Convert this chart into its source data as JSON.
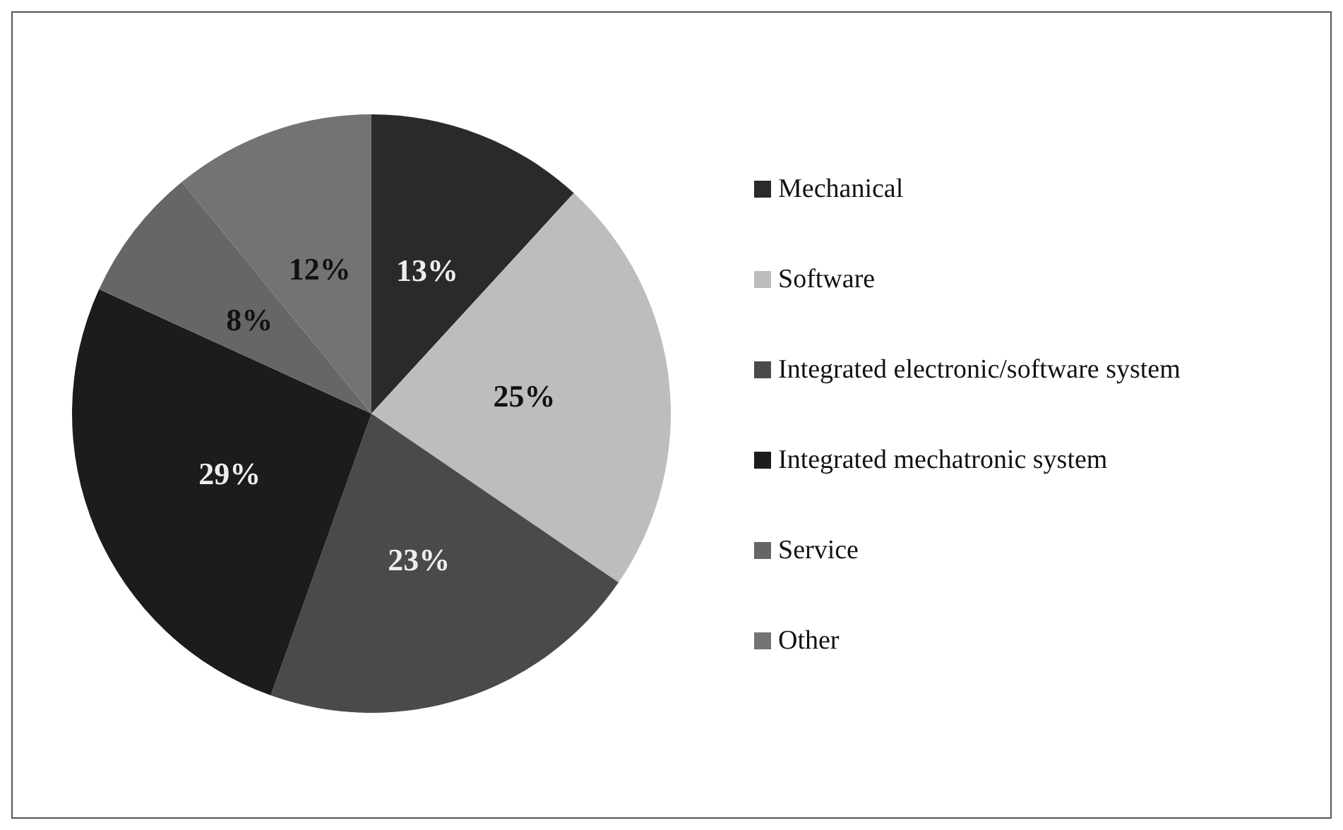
{
  "chart_data": {
    "type": "pie",
    "categories": [
      "Mechanical",
      "Software",
      "Integrated electronic/software system",
      "Integrated mechatronic system",
      "Service",
      "Other"
    ],
    "values": [
      13,
      25,
      23,
      29,
      8,
      12
    ],
    "value_labels": [
      "13%",
      "25%",
      "23%",
      "29%",
      "8%",
      "12%"
    ],
    "colors": [
      "#2a2a2a",
      "#bdbdbd",
      "#4a4a4a",
      "#1c1c1c",
      "#666666",
      "#737373"
    ],
    "legend": "right"
  }
}
